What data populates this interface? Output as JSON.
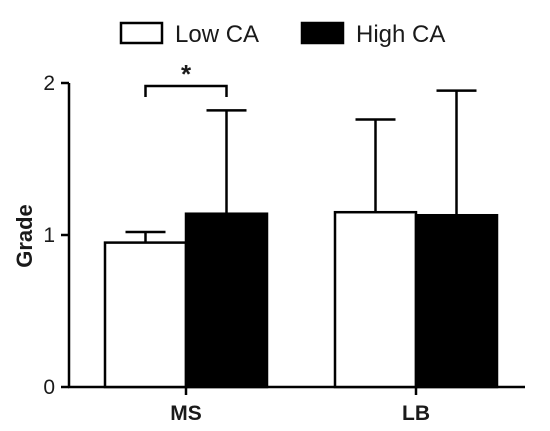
{
  "chart_data": {
    "type": "bar",
    "ylabel": "Grade",
    "xlabel": "",
    "ylim": [
      0,
      2
    ],
    "yticks": [
      "0",
      "1",
      "2"
    ],
    "categories": [
      "MS",
      "LB"
    ],
    "series": [
      {
        "name": "Low CA",
        "values": [
          0.95,
          1.15
        ],
        "errors": [
          0.07,
          0.61
        ],
        "color": "#ffffff"
      },
      {
        "name": "High CA",
        "values": [
          1.14,
          1.13
        ],
        "errors": [
          0.68,
          0.82
        ],
        "color": "#000000"
      }
    ],
    "error_bars": "upper only",
    "annotations": [
      {
        "text": "*",
        "between": [
          "MS Low CA",
          "MS High CA"
        ]
      }
    ],
    "legend_position": "top-center",
    "grid": false
  }
}
